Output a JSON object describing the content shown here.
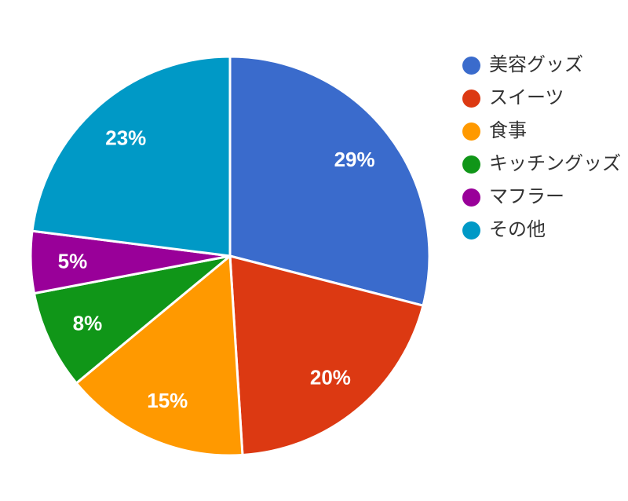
{
  "chart_data": {
    "type": "pie",
    "title": "",
    "legend_position": "right",
    "start_angle_deg": 0,
    "direction": "clockwise",
    "background_color": "#ffffff",
    "slice_border_color": "#ffffff",
    "slice_label_color": "#ffffff",
    "legend_text_color": "#333333",
    "slices": [
      {
        "label": "美容グッズ",
        "value": 29,
        "display": "29%",
        "color": "#3a6bcc"
      },
      {
        "label": "スイーツ",
        "value": 20,
        "display": "20%",
        "color": "#dc3912"
      },
      {
        "label": "食事",
        "value": 15,
        "display": "15%",
        "color": "#ff9900"
      },
      {
        "label": "キッチングッズ",
        "value": 8,
        "display": "8%",
        "color": "#109618"
      },
      {
        "label": "マフラー",
        "value": 5,
        "display": "5%",
        "color": "#990099"
      },
      {
        "label": "その他",
        "value": 23,
        "display": "23%",
        "color": "#0099c6"
      }
    ]
  }
}
